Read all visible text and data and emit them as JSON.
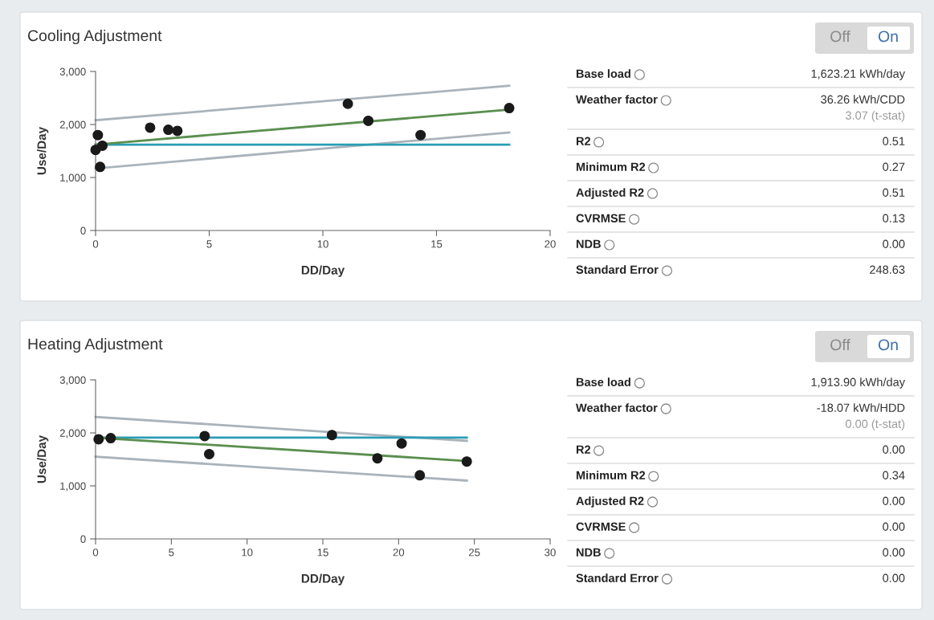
{
  "chart_data": [
    {
      "type": "scatter",
      "title": "Cooling Adjustment",
      "xlabel": "DD/Day",
      "ylabel": "Use/Day",
      "xlim": [
        0,
        20
      ],
      "ylim": [
        0,
        3000
      ],
      "xticks": [
        0,
        5,
        10,
        15,
        20
      ],
      "yticks": [
        0,
        {
          "value": 1000,
          "label": "1,000"
        },
        {
          "value": 2000,
          "label": "2,000"
        },
        {
          "value": 3000,
          "label": "3,000"
        }
      ],
      "grid": false,
      "series": [
        {
          "type": "line",
          "color": "#a9b3bb",
          "x": [
            0,
            18.2
          ],
          "values": [
            2080,
            2730
          ]
        },
        {
          "type": "line",
          "color": "#a9b3bb",
          "x": [
            0,
            18.2
          ],
          "values": [
            1170,
            1850
          ]
        },
        {
          "type": "line",
          "color": "#2a9db5",
          "x": [
            0,
            18.2
          ],
          "values": [
            1620,
            1620
          ]
        },
        {
          "type": "line",
          "color": "#5a8f4e",
          "x": [
            0,
            18.2
          ],
          "values": [
            1620,
            2280
          ]
        },
        {
          "type": "scatter",
          "color": "#1a1a1a",
          "marker": "circle",
          "x": [
            0,
            0.1,
            0.3,
            0.2,
            2.4,
            3.2,
            3.6,
            11.1,
            12,
            14.3,
            18.2
          ],
          "values": [
            1520,
            1800,
            1600,
            1200,
            1940,
            1900,
            1880,
            2390,
            2070,
            1800,
            2310
          ]
        }
      ]
    },
    {
      "type": "other",
      "categories": [
        "Base load",
        "Weather factor",
        "R2",
        "Minimum R2",
        "Adjusted R2",
        "CVRMSE",
        "NDB",
        "Standard Error"
      ],
      "value_labels": [
        "1,623.21 kWh/day",
        "36.26 kWh/CDD",
        "0.51",
        "0.27",
        "0.51",
        "0.13",
        "0.00",
        "248.63"
      ],
      "annotations": [
        "Off",
        "On",
        "3.07 (t-stat)"
      ]
    },
    {
      "type": "scatter",
      "title": "Heating Adjustment",
      "xlabel": "DD/Day",
      "ylabel": "Use/Day",
      "xlim": [
        0,
        30
      ],
      "ylim": [
        0,
        3000
      ],
      "xticks": [
        0,
        5,
        10,
        15,
        20,
        25,
        30
      ],
      "yticks": [
        0,
        {
          "value": 1000,
          "label": "1,000"
        },
        {
          "value": 2000,
          "label": "2,000"
        },
        {
          "value": 3000,
          "label": "3,000"
        }
      ],
      "grid": false,
      "series": [
        {
          "type": "line",
          "color": "#a9b3bb",
          "x": [
            0,
            24.5
          ],
          "values": [
            2300,
            1850
          ]
        },
        {
          "type": "line",
          "color": "#a9b3bb",
          "x": [
            0,
            24.5
          ],
          "values": [
            1550,
            1100
          ]
        },
        {
          "type": "line",
          "color": "#2a9db5",
          "x": [
            0,
            24.5
          ],
          "values": [
            1910,
            1910
          ]
        },
        {
          "type": "line",
          "color": "#5a8f4e",
          "x": [
            0,
            24.5
          ],
          "values": [
            1910,
            1470
          ]
        },
        {
          "type": "scatter",
          "color": "#1a1a1a",
          "marker": "circle",
          "x": [
            0.2,
            1,
            7.2,
            7.5,
            15.6,
            18.6,
            20.2,
            21.4,
            24.5
          ],
          "values": [
            1880,
            1900,
            1940,
            1600,
            1960,
            1520,
            1800,
            1200,
            1460
          ]
        }
      ]
    },
    {
      "type": "other",
      "categories": [
        "Base load",
        "Weather factor",
        "R2",
        "Minimum R2",
        "Adjusted R2",
        "CVRMSE",
        "NDB",
        "Standard Error"
      ],
      "value_labels": [
        "1,913.90 kWh/day",
        "-18.07 kWh/HDD",
        "0.00",
        "0.34",
        "0.00",
        "0.00",
        "0.00",
        "0.00"
      ],
      "annotations": [
        "Off",
        "On",
        "0.00 (t-stat)"
      ]
    }
  ]
}
